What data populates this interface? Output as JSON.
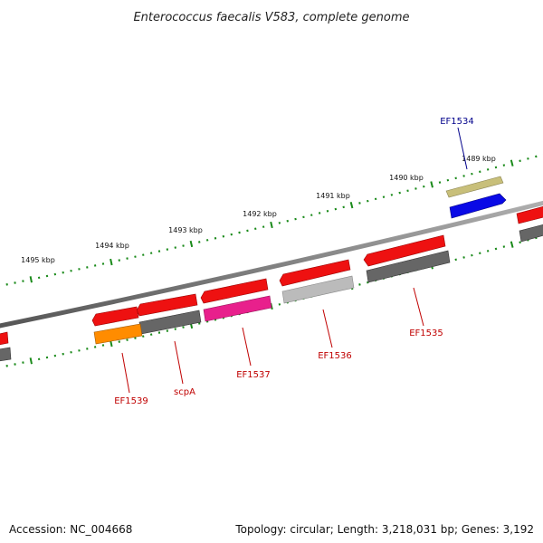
{
  "title": "Enterococcus faecalis V583, complete genome",
  "footer": {
    "accession": "Accession: NC_004668",
    "summary": "Topology: circular; Length: 3,218,031 bp; Genes: 3,192"
  },
  "colors": {
    "backbone": "#7a7a7a",
    "ticks": "#1a8a1a",
    "label_red": "#c00000",
    "label_blue": "#00008b"
  },
  "scale": {
    "unit": "kbp",
    "labels": [
      "1489 kbp",
      "1490 kbp",
      "1491 kbp",
      "1492 kbp",
      "1493 kbp",
      "1494 kbp",
      "1495 kbp"
    ]
  },
  "labels": {
    "EF1534": "EF1534",
    "EF1535": "EF1535",
    "EF1536": "EF1536",
    "EF1537": "EF1537",
    "scpA": "scpA",
    "EF1539": "EF1539"
  },
  "genes": [
    {
      "id": "EF1534",
      "strand": "+",
      "color": "#c8bf7a"
    },
    {
      "id": "EF1534-product",
      "strand": "+",
      "color": "#0a0ae6"
    },
    {
      "id": "EF1535",
      "strand": "-",
      "color": "#ee1111"
    },
    {
      "id": "EF1535-product",
      "strand": "-",
      "color": "#666666"
    },
    {
      "id": "EF1536",
      "strand": "-",
      "color": "#ee1111"
    },
    {
      "id": "EF1536-product",
      "strand": "-",
      "color": "#bbbbbb"
    },
    {
      "id": "EF1537",
      "strand": "-",
      "color": "#ee1111"
    },
    {
      "id": "EF1537-product",
      "strand": "-",
      "color": "#e8208c"
    },
    {
      "id": "scpA",
      "strand": "-",
      "color": "#ee1111"
    },
    {
      "id": "scpA-product",
      "strand": "-",
      "color": "#666666"
    },
    {
      "id": "EF1539",
      "strand": "-",
      "color": "#ee1111"
    },
    {
      "id": "EF1539-product",
      "strand": "-",
      "color": "#ff8c00"
    }
  ]
}
